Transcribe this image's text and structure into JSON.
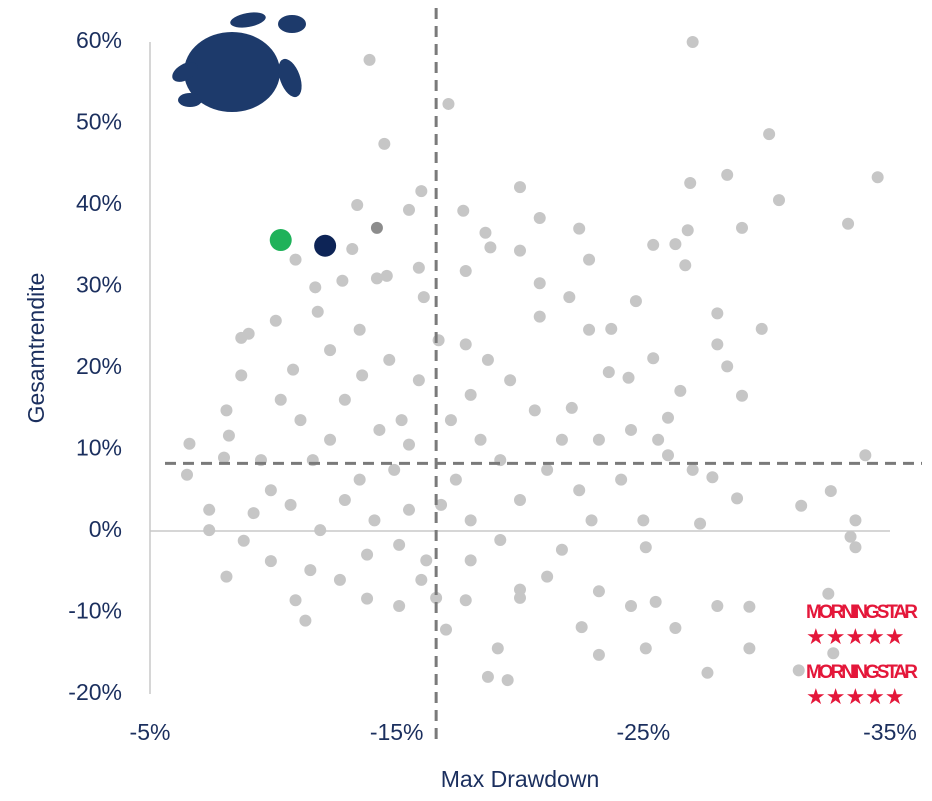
{
  "chart_data": {
    "type": "scatter",
    "x_label": "Max Drawdown",
    "y_label": "Gesamtrendite",
    "xlim": [
      -5,
      -35
    ],
    "ylim": [
      -20,
      60
    ],
    "xticks": [
      {
        "value": -5,
        "label": "-5%"
      },
      {
        "value": -15,
        "label": "-15%"
      },
      {
        "value": -25,
        "label": "-25%"
      },
      {
        "value": -35,
        "label": "-35%"
      }
    ],
    "yticks": [
      {
        "value": -20,
        "label": "-20%"
      },
      {
        "value": -10,
        "label": "-10%"
      },
      {
        "value": 0,
        "label": "0%"
      },
      {
        "value": 10,
        "label": "10%"
      },
      {
        "value": 20,
        "label": "20%"
      },
      {
        "value": 30,
        "label": "30%"
      },
      {
        "value": 40,
        "label": "40%"
      },
      {
        "value": 50,
        "label": "50%"
      },
      {
        "value": 60,
        "label": "60%"
      }
    ],
    "ref_lines": {
      "x": -16.6,
      "y": 8.3
    },
    "logos": [
      "MORNINGSTAR",
      "MORNINGSTAR"
    ],
    "series": [
      {
        "color": "#c6c6c6",
        "x": [
          -27.0,
          -13.9,
          -17.1,
          -30.1,
          -14.5,
          -34.5,
          -28.4,
          -26.9,
          -20.0,
          -30.5,
          -16.0,
          -13.4,
          -15.5,
          -17.7,
          -33.3,
          -29.0,
          -22.4,
          -18.6,
          -20.8,
          -26.8,
          -25.4,
          -26.3,
          -18.8,
          -20.0,
          -10.9,
          -13.2,
          -22.8,
          -26.7,
          -14.2,
          -14.6,
          -15.9,
          -17.8,
          -20.8,
          -11.7,
          -12.8,
          -16.1,
          -22.0,
          -24.7,
          -28.0,
          -10.1,
          -9.0,
          -8.7,
          -11.8,
          -20.8,
          -22.8,
          -29.8,
          -23.7,
          -28.0,
          -17.8,
          -10.8,
          -8.7,
          -25.4,
          -28.4,
          -23.6,
          -24.4,
          -29.0,
          -26.5,
          -8.1,
          -22.1,
          -26.0,
          -8.2,
          -24.5,
          -6.6,
          -34.0,
          -8.0,
          -26.0,
          -6.5,
          -27.8,
          -7.4,
          -28.8,
          -31.4,
          -32.6,
          -33.6,
          -27.3,
          -33.4,
          -33.6,
          -8.8,
          -25.1,
          -8.1,
          -9.9,
          -10.9,
          -11.3,
          -13.8,
          -17.0,
          -19.1,
          -18.7,
          -19.5,
          -23.2,
          -22.5,
          -23.2,
          -24.5,
          -25.5,
          -25.1,
          -26.3,
          -27.6,
          -28.0,
          -29.3,
          -29.3,
          -31.3,
          -32.5,
          -32.7,
          -16.6,
          -17.8,
          -20.0,
          -21.1,
          -15.1,
          -12.7,
          -7.4,
          -9.2,
          -9.9,
          -11.6,
          -12.9,
          -13.6,
          -14.7,
          -15.2,
          -15.9,
          -14.3,
          -15.5,
          -14.9,
          -13.5,
          -12.3,
          -11.1,
          -17.2,
          -18.0,
          -18.4,
          -19.2,
          -17.4,
          -16.8,
          -18.0,
          -15.5,
          -14.1,
          -12.9,
          -11.9,
          -10.7,
          -15.1,
          -16.2,
          -18.0,
          -19.2,
          -20.0,
          -21.1,
          -21.7,
          -20.6,
          -19.6,
          -18.7,
          -16.7,
          -13.5,
          -12.3,
          -10.3,
          -9.5,
          -11.5,
          -13.8,
          -16.0,
          -21.7,
          -22.9,
          -24.1,
          -23.2,
          -22.4,
          -20.0,
          -25.0,
          -27.0,
          -25.6
        ],
        "y": [
          60.0,
          57.8,
          52.4,
          48.7,
          47.5,
          43.4,
          43.7,
          42.7,
          42.2,
          40.6,
          41.7,
          40.0,
          39.4,
          39.3,
          37.7,
          37.2,
          37.1,
          36.6,
          38.4,
          36.9,
          35.1,
          35.2,
          34.8,
          34.4,
          33.3,
          34.6,
          33.3,
          32.6,
          31.0,
          31.3,
          32.3,
          31.9,
          30.4,
          29.9,
          30.7,
          28.7,
          28.7,
          28.2,
          26.7,
          25.8,
          24.2,
          23.7,
          26.9,
          26.3,
          24.7,
          24.8,
          24.8,
          22.9,
          22.9,
          19.8,
          19.1,
          21.2,
          20.2,
          19.5,
          18.8,
          16.6,
          17.2,
          14.8,
          15.1,
          13.9,
          11.7,
          12.4,
          10.7,
          9.3,
          9.0,
          9.3,
          6.9,
          6.6,
          2.6,
          4.0,
          3.1,
          4.9,
          1.3,
          0.9,
          -0.7,
          -2.0,
          -1.2,
          -2.0,
          -5.6,
          -3.7,
          -8.5,
          -11.0,
          -8.3,
          -12.1,
          -14.4,
          -17.9,
          -18.3,
          -7.4,
          -11.8,
          -15.2,
          -9.2,
          -8.7,
          -14.4,
          -11.9,
          -17.4,
          -9.2,
          -9.3,
          -14.4,
          -17.1,
          -7.7,
          -15.0,
          -8.2,
          -8.5,
          -8.2,
          -5.6,
          -9.2,
          -6.0,
          0.1,
          2.2,
          5.0,
          8.7,
          16.1,
          19.1,
          21.0,
          13.6,
          18.5,
          12.4,
          10.6,
          7.5,
          6.3,
          11.2,
          13.6,
          13.6,
          16.7,
          11.2,
          8.7,
          6.3,
          3.2,
          1.3,
          2.6,
          1.3,
          3.8,
          0.1,
          3.2,
          -1.7,
          -3.6,
          -3.6,
          -1.1,
          3.8,
          7.5,
          11.2,
          14.8,
          18.5,
          21.0,
          23.4,
          24.7,
          22.2,
          16.1,
          8.7,
          -4.8,
          -2.9,
          -6.0,
          -2.3,
          1.3,
          6.3,
          11.2,
          5.0,
          -7.2,
          1.3,
          7.5,
          11.2
        ]
      },
      {
        "color": "#8c8c8c",
        "x": [
          -14.2
        ],
        "y": [
          37.2
        ]
      },
      {
        "color": "#1fb25a",
        "x": [
          -10.3
        ],
        "y": [
          35.7
        ]
      },
      {
        "color": "#0d2456",
        "x": [
          -12.1
        ],
        "y": [
          35.0
        ]
      }
    ]
  }
}
